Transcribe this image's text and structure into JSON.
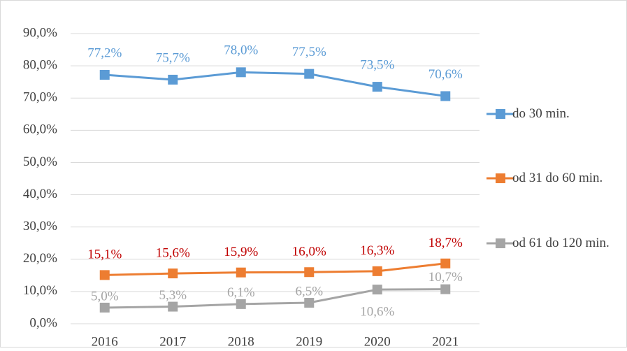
{
  "chart_data": {
    "type": "line",
    "categories": [
      "2016",
      "2017",
      "2018",
      "2019",
      "2020",
      "2021"
    ],
    "series": [
      {
        "name": "do 30 min.",
        "color": "#5b9bd5",
        "label_color": "#5b9bd5",
        "values": [
          77.2,
          75.7,
          78.0,
          77.5,
          73.5,
          70.6
        ],
        "value_labels": [
          "77,2%",
          "75,7%",
          "78,0%",
          "77,5%",
          "73,5%",
          "70,6%"
        ]
      },
      {
        "name": "od 31 do 60 min.",
        "color": "#ed7d31",
        "label_color": "#c00000",
        "values": [
          15.1,
          15.6,
          15.9,
          16.0,
          16.3,
          18.7
        ],
        "value_labels": [
          "15,1%",
          "15,6%",
          "15,9%",
          "16,0%",
          "16,3%",
          "18,7%"
        ]
      },
      {
        "name": "od 61 do 120 min.",
        "color": "#a5a5a5",
        "label_color": "#a5a5a5",
        "values": [
          5.0,
          5.3,
          6.1,
          6.5,
          10.6,
          10.7
        ],
        "value_labels": [
          "5,0%",
          "5,3%",
          "6,1%",
          "6,5%",
          "10,6%",
          "10,7%"
        ]
      }
    ],
    "ylim": [
      0,
      90
    ],
    "yticks": [
      {
        "value": 0,
        "label": "0,0%"
      },
      {
        "value": 10,
        "label": "10,0%"
      },
      {
        "value": 20,
        "label": "20,0%"
      },
      {
        "value": 30,
        "label": "30,0%"
      },
      {
        "value": 40,
        "label": "40,0%"
      },
      {
        "value": 50,
        "label": "50,0%"
      },
      {
        "value": 60,
        "label": "60,0%"
      },
      {
        "value": 70,
        "label": "70,0%"
      },
      {
        "value": 80,
        "label": "80,0%"
      },
      {
        "value": 90,
        "label": "90,0%"
      }
    ],
    "grid": true,
    "legend": "right"
  }
}
